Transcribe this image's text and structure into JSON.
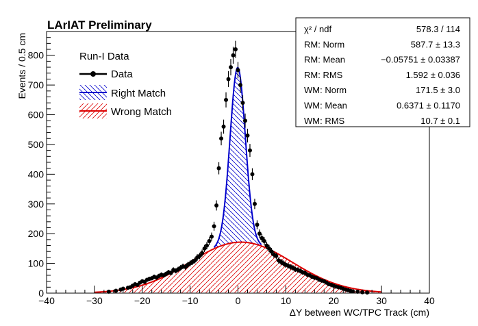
{
  "chart_data": {
    "type": "histogram",
    "title": "LArIAT Preliminary",
    "xlabel": "ΔY between WC/TPC Track (cm)",
    "ylabel": "Events / 0.5 cm",
    "xlim": [
      -40,
      40
    ],
    "ylim": [
      0,
      880
    ],
    "x_ticks": [
      "−40",
      "−30",
      "−20",
      "−10",
      "0",
      "10",
      "20",
      "30",
      "40"
    ],
    "y_ticks": [
      "0",
      "100",
      "200",
      "300",
      "400",
      "500",
      "600",
      "700",
      "800"
    ],
    "legend": {
      "header": "Run-I Data",
      "entries": [
        {
          "label": "Data",
          "color": "#000000",
          "style": "marker"
        },
        {
          "label": "Right Match",
          "color": "#0000cc",
          "style": "hatch"
        },
        {
          "label": "Wrong Match",
          "color": "#dd0000",
          "style": "hatch"
        }
      ]
    },
    "stats_box": [
      {
        "label": "χ² / ndf",
        "value": "578.3 / 114"
      },
      {
        "label": "RM: Norm",
        "value": "587.7 ± 13.3"
      },
      {
        "label": "RM: Mean",
        "value": "−0.05751 ± 0.03387"
      },
      {
        "label": "RM: RMS",
        "value": "1.592 ± 0.036"
      },
      {
        "label": "WM: Norm",
        "value": "171.5 ± 3.0"
      },
      {
        "label": "WM: Mean",
        "value": "0.6371 ± 0.1170"
      },
      {
        "label": "WM: RMS",
        "value": "10.7 ± 0.1"
      }
    ],
    "fit_right_match": {
      "norm": 587.7,
      "mean": -0.05751,
      "sigma": 1.592,
      "color": "#0000cc"
    },
    "fit_wrong_match": {
      "norm": 171.5,
      "mean": 0.6371,
      "sigma": 10.7,
      "color": "#dd0000"
    },
    "data_points": {
      "x": [
        -27,
        -25.5,
        -24.5,
        -24,
        -23,
        -22.5,
        -22,
        -21.5,
        -21,
        -20.5,
        -20,
        -19.5,
        -19,
        -18.5,
        -18,
        -17.5,
        -17,
        -16.5,
        -16,
        -15.5,
        -15,
        -14.5,
        -14,
        -13.5,
        -13,
        -12.5,
        -12,
        -11.5,
        -11,
        -10.5,
        -10,
        -9.5,
        -9,
        -8.5,
        -8,
        -7.5,
        -7,
        -6.5,
        -6,
        -5.5,
        -5,
        -4.5,
        -4,
        -3.5,
        -3,
        -2.5,
        -2,
        -1.5,
        -1,
        -0.5,
        0,
        0.5,
        1,
        1.5,
        2,
        2.5,
        3,
        3.5,
        4,
        4.5,
        5,
        5.5,
        6,
        6.5,
        7,
        7.5,
        8,
        8.5,
        9,
        9.5,
        10,
        10.5,
        11,
        11.5,
        12,
        12.5,
        13,
        13.5,
        14,
        14.5,
        15,
        15.5,
        16,
        16.5,
        17,
        17.5,
        18,
        18.5,
        19,
        19.5,
        20,
        20.5,
        21,
        21.5,
        22,
        22.5,
        23,
        23.5,
        24,
        25,
        26,
        27
      ],
      "y": [
        5,
        8,
        12,
        15,
        18,
        20,
        25,
        30,
        28,
        35,
        40,
        38,
        45,
        48,
        50,
        55,
        52,
        58,
        62,
        60,
        65,
        70,
        68,
        78,
        75,
        80,
        85,
        90,
        88,
        95,
        100,
        105,
        110,
        120,
        125,
        135,
        150,
        160,
        175,
        190,
        225,
        295,
        420,
        520,
        560,
        650,
        720,
        760,
        800,
        820,
        750,
        700,
        640,
        580,
        530,
        480,
        400,
        300,
        230,
        200,
        185,
        175,
        160,
        150,
        140,
        130,
        125,
        110,
        105,
        100,
        95,
        92,
        88,
        85,
        80,
        78,
        75,
        70,
        68,
        62,
        60,
        55,
        52,
        50,
        45,
        42,
        40,
        35,
        30,
        28,
        25,
        22,
        20,
        18,
        15,
        12,
        10,
        8,
        6,
        5,
        3,
        2
      ],
      "color": "#000000"
    }
  }
}
